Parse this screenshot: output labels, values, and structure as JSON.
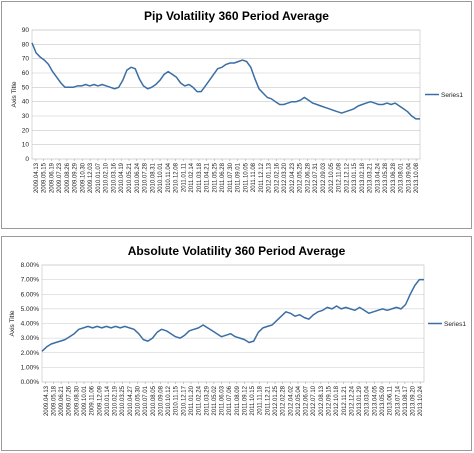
{
  "chart_data": [
    {
      "type": "line",
      "title": "Pip Volatility 360 Period Average",
      "ylabel": "Axis Title",
      "ylim": [
        0,
        90
      ],
      "yticks": [
        "0",
        "10",
        "20",
        "30",
        "40",
        "50",
        "60",
        "70",
        "80",
        "90"
      ],
      "grid": true,
      "legend_placement": "right",
      "series": [
        {
          "name": "Series1",
          "color": "#3a6ea5",
          "values": [
            81,
            74,
            71,
            69,
            66,
            61,
            57,
            53,
            50,
            50,
            50,
            51,
            51,
            52,
            51,
            52,
            51,
            52,
            51,
            50,
            49,
            50,
            55,
            62,
            64,
            63,
            56,
            51,
            49,
            50,
            52,
            55,
            59,
            61,
            59,
            57,
            53,
            51,
            52,
            50,
            47,
            47,
            51,
            55,
            59,
            63,
            64,
            66,
            67,
            67,
            68,
            69,
            68,
            64,
            56,
            49,
            46,
            43,
            42,
            40,
            38,
            38,
            39,
            40,
            40,
            41,
            43,
            41,
            39,
            38,
            37,
            36,
            35,
            34,
            33,
            32,
            33,
            34,
            35,
            37,
            38,
            39,
            40,
            39,
            38,
            38,
            39,
            38,
            39,
            37,
            35,
            33,
            30,
            28,
            28
          ]
        }
      ],
      "x_labels": [
        "2009.04.13",
        "2009.05.15",
        "2009.06.19",
        "2009.07.23",
        "2009.08.26",
        "2009.09.29",
        "2009.10.30",
        "2009.12.03",
        "2010.01.07",
        "2010.02.10",
        "2010.03.16",
        "2010.04.19",
        "2010.05.21",
        "2010.06.24",
        "2010.07.28",
        "2010.08.31",
        "2010.10.01",
        "2010.11.04",
        "2010.12.08",
        "2011.01.11",
        "2011.02.14",
        "2011.03.18",
        "2011.04.21",
        "2011.05.25",
        "2011.06.28",
        "2011.07.30",
        "2011.09.01",
        "2011.10.05",
        "2011.11.08",
        "2011.12.12",
        "2012.01.13",
        "2012.02.16",
        "2012.03.20",
        "2012.04.23",
        "2012.05.25",
        "2012.06.28",
        "2012.07.31",
        "2012.09.03",
        "2012.10.05",
        "2012.11.08",
        "2012.12.12",
        "2013.01.15",
        "2013.02.18",
        "2013.03.21",
        "2013.04.24",
        "2013.05.28",
        "2013.06.28",
        "2013.08.01",
        "2013.09.04",
        "2013.10.08"
      ]
    },
    {
      "type": "line",
      "title": "Absolute Volatility 360 Period Average",
      "ylabel": "Axis Title",
      "ylim": [
        0,
        8
      ],
      "yticks": [
        "0.00%",
        "1.00%",
        "2.00%",
        "3.00%",
        "4.00%",
        "5.00%",
        "6.00%",
        "7.00%",
        "8.00%"
      ],
      "grid": true,
      "legend_placement": "right",
      "series": [
        {
          "name": "Series1",
          "color": "#3a6ea5",
          "values": [
            2.1,
            2.4,
            2.6,
            2.7,
            2.8,
            2.9,
            3.1,
            3.3,
            3.6,
            3.7,
            3.8,
            3.7,
            3.8,
            3.7,
            3.8,
            3.7,
            3.8,
            3.7,
            3.8,
            3.7,
            3.6,
            3.3,
            2.9,
            2.8,
            3.0,
            3.4,
            3.6,
            3.5,
            3.3,
            3.1,
            3.0,
            3.2,
            3.5,
            3.6,
            3.7,
            3.9,
            3.7,
            3.5,
            3.3,
            3.1,
            3.2,
            3.3,
            3.1,
            3.0,
            2.9,
            2.7,
            2.8,
            3.4,
            3.7,
            3.8,
            3.9,
            4.2,
            4.5,
            4.8,
            4.7,
            4.5,
            4.6,
            4.4,
            4.3,
            4.6,
            4.8,
            4.9,
            5.1,
            5.0,
            5.2,
            5.0,
            5.1,
            5.0,
            4.9,
            5.1,
            4.9,
            4.7,
            4.8,
            4.9,
            5.0,
            4.9,
            5.0,
            5.1,
            5.0,
            5.3,
            6.0,
            6.6,
            7.0,
            7.0
          ]
        }
      ],
      "x_labels": [
        "2009.04.13",
        "2009.05.18",
        "2009.06.21",
        "2009.07.26",
        "2009.08.30",
        "2009.10.01",
        "2009.11.06",
        "2009.12.09",
        "2010.01.14",
        "2010.02.19",
        "2010.03.25",
        "2010.04.27",
        "2010.05.30",
        "2010.07.01",
        "2010.08.05",
        "2010.09.08",
        "2010.10.12",
        "2010.11.15",
        "2010.12.17",
        "2011.01.20",
        "2011.02.24",
        "2011.03.29",
        "2011.05.02",
        "2011.06.03",
        "2011.07.06",
        "2011.08.09",
        "2011.09.12",
        "2011.10.15",
        "2011.11.18",
        "2011.12.21",
        "2012.01.25",
        "2012.02.28",
        "2012.04.02",
        "2012.05.04",
        "2012.06.07",
        "2012.07.10",
        "2012.08.13",
        "2012.09.15",
        "2012.10.18",
        "2012.11.21",
        "2012.12.24",
        "2013.01.29",
        "2013.03.04",
        "2013.04.05",
        "2013.05.09",
        "2013.06.11",
        "2013.07.14",
        "2013.08.17",
        "2013.09.20",
        "2013.10.24"
      ]
    }
  ]
}
